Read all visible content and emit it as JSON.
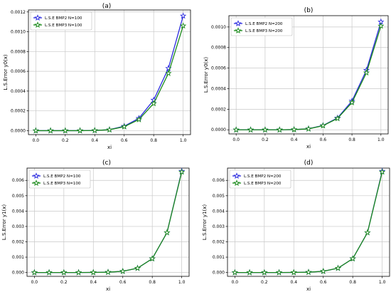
{
  "figure": {
    "panels": [
      {
        "label": "(a)"
      },
      {
        "label": "(b)"
      },
      {
        "label": "(c)"
      },
      {
        "label": "(d)"
      }
    ]
  },
  "colors": {
    "series1": "#2c2ce0",
    "series2": "#1a8a1a"
  },
  "chart_data": [
    {
      "type": "line",
      "title": "(a)",
      "xlabel": "xi",
      "ylabel": "L.S.Error y0(x)",
      "xlim": [
        -0.05,
        1.05
      ],
      "ylim": [
        -4e-05,
        0.00122
      ],
      "x": [
        0.0,
        0.1,
        0.2,
        0.3,
        0.4,
        0.5,
        0.6,
        0.7,
        0.8,
        0.9,
        1.0
      ],
      "xticks": [
        "0.0",
        "0.2",
        "0.4",
        "0.6",
        "0.8",
        "1.0"
      ],
      "xtick_values": [
        0.0,
        0.2,
        0.4,
        0.6,
        0.8,
        1.0
      ],
      "yticks": [
        "0.0000",
        "0.0002",
        "0.0004",
        "0.0006",
        "0.0008",
        "0.0010",
        "0.0012"
      ],
      "ytick_values": [
        0.0,
        0.0002,
        0.0004,
        0.0006,
        0.0008,
        0.001,
        0.0012
      ],
      "grid": true,
      "legend": "top-left",
      "series": [
        {
          "name": "L.S.E BMP2   N=100",
          "color": "#2c2ce0",
          "marker": "star",
          "values": [
            0,
            0,
            0,
            0,
            2e-06,
            1e-05,
            4.5e-05,
            0.000125,
            0.00031,
            0.00063,
            0.00116
          ]
        },
        {
          "name": "L.S.E BMP3   N=100",
          "color": "#1a8a1a",
          "marker": "star",
          "values": [
            0,
            0,
            0,
            0,
            2e-06,
            9e-06,
            4e-05,
            0.000112,
            0.000275,
            0.00058,
            0.00106
          ]
        }
      ]
    },
    {
      "type": "line",
      "title": "(b)",
      "xlabel": "xi",
      "ylabel": "L.S.Error y0(x)",
      "xlim": [
        -0.05,
        1.05
      ],
      "ylim": [
        -4e-05,
        0.00111
      ],
      "x": [
        0.0,
        0.1,
        0.2,
        0.3,
        0.4,
        0.5,
        0.6,
        0.7,
        0.8,
        0.9,
        1.0
      ],
      "xticks": [
        "0.0",
        "0.2",
        "0.4",
        "0.6",
        "0.8",
        "1.0"
      ],
      "xtick_values": [
        0.0,
        0.2,
        0.4,
        0.6,
        0.8,
        1.0
      ],
      "yticks": [
        "0.0000",
        "0.0002",
        "0.0004",
        "0.0006",
        "0.0008",
        "0.0010"
      ],
      "ytick_values": [
        0.0,
        0.0002,
        0.0004,
        0.0006,
        0.0008,
        0.001
      ],
      "grid": true,
      "legend": "top-left",
      "series": [
        {
          "name": "L.S.E BMP2   N=200",
          "color": "#2c2ce0",
          "marker": "star",
          "values": [
            0,
            0,
            0,
            0,
            2e-06,
            1e-05,
            4.2e-05,
            0.000115,
            0.00028,
            0.00058,
            0.00105
          ]
        },
        {
          "name": "L.S.E  BMP3  N=200",
          "color": "#1a8a1a",
          "marker": "star",
          "values": [
            0,
            0,
            0,
            0,
            2e-06,
            9e-06,
            4e-05,
            0.00011,
            0.000265,
            0.000555,
            0.00101
          ]
        }
      ]
    },
    {
      "type": "line",
      "title": "(c)",
      "xlabel": "xi",
      "ylabel": "L.S.Error y1(x)",
      "xlim": [
        -0.05,
        1.05
      ],
      "ylim": [
        -0.00025,
        0.0068
      ],
      "x": [
        0.0,
        0.1,
        0.2,
        0.3,
        0.4,
        0.5,
        0.6,
        0.7,
        0.8,
        0.9,
        1.0
      ],
      "xticks": [
        "0.0",
        "0.2",
        "0.4",
        "0.6",
        "0.8",
        "1.0"
      ],
      "xtick_values": [
        0.0,
        0.2,
        0.4,
        0.6,
        0.8,
        1.0
      ],
      "yticks": [
        "0.000",
        "0.001",
        "0.002",
        "0.003",
        "0.004",
        "0.005",
        "0.006"
      ],
      "ytick_values": [
        0.0,
        0.001,
        0.002,
        0.003,
        0.004,
        0.005,
        0.006
      ],
      "grid": true,
      "legend": "top-left",
      "series": [
        {
          "name": "L.S.E BMP2   N=100",
          "color": "#2c2ce0",
          "marker": "star",
          "values": [
            0,
            0,
            0,
            0,
            5e-06,
            2e-05,
            8e-05,
            0.00028,
            0.0009,
            0.0026,
            0.0066
          ]
        },
        {
          "name": "L.S.E BMP3   N=100",
          "color": "#1a8a1a",
          "marker": "star",
          "values": [
            0,
            0,
            0,
            0,
            5e-06,
            2e-05,
            8e-05,
            0.00028,
            0.0009,
            0.0026,
            0.00655
          ]
        }
      ]
    },
    {
      "type": "line",
      "title": "(d)",
      "xlabel": "xi",
      "ylabel": "L.S.Error y1(x)",
      "xlim": [
        -0.05,
        1.05
      ],
      "ylim": [
        -0.00025,
        0.0068
      ],
      "x": [
        0.0,
        0.1,
        0.2,
        0.3,
        0.4,
        0.5,
        0.6,
        0.7,
        0.8,
        0.9,
        1.0
      ],
      "xticks": [
        "0.0",
        "0.2",
        "0.4",
        "0.6",
        "0.8",
        "1.0"
      ],
      "xtick_values": [
        0.0,
        0.2,
        0.4,
        0.6,
        0.8,
        1.0
      ],
      "yticks": [
        "0.000",
        "0.001",
        "0.002",
        "0.003",
        "0.004",
        "0.005",
        "0.006"
      ],
      "ytick_values": [
        0.0,
        0.001,
        0.002,
        0.003,
        0.004,
        0.005,
        0.006
      ],
      "grid": true,
      "legend": "top-left",
      "series": [
        {
          "name": "L.S.E BMP2   N=200",
          "color": "#2c2ce0",
          "marker": "star",
          "values": [
            0,
            0,
            0,
            0,
            5e-06,
            2e-05,
            8e-05,
            0.00028,
            0.0009,
            0.0026,
            0.0066
          ]
        },
        {
          "name": "L.S.E BMP3   N=200",
          "color": "#1a8a1a",
          "marker": "star",
          "values": [
            0,
            0,
            0,
            0,
            5e-06,
            2e-05,
            8e-05,
            0.00028,
            0.0009,
            0.0026,
            0.00655
          ]
        }
      ]
    }
  ]
}
